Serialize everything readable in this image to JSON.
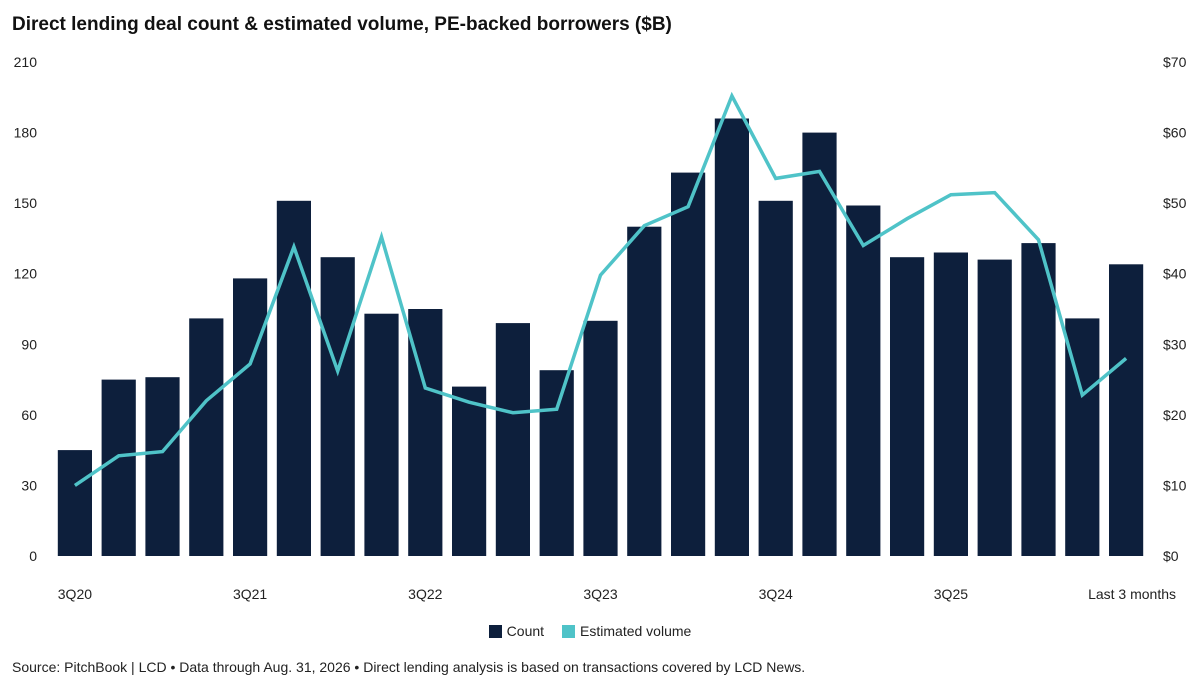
{
  "title": "Direct lending deal count & estimated volume, PE-backed borrowers ($B)",
  "source": "Source: PitchBook | LCD • Data through Aug. 31, 2026 • Direct lending analysis is based on transactions covered by LCD News.",
  "colors": {
    "bar": "#0d1f3c",
    "line": "#4fc3c8",
    "grid": "#e6e6e6"
  },
  "chart_data": {
    "type": "bar",
    "title": "Direct lending deal count & estimated volume, PE-backed borrowers ($B)",
    "x_tick_labels": [
      "3Q20",
      "3Q21",
      "3Q22",
      "3Q23",
      "3Q24",
      "3Q25",
      "Last 3 months"
    ],
    "x_tick_positions": [
      0,
      4,
      8,
      12,
      16,
      20,
      24
    ],
    "y_left": {
      "ticks": [
        "0",
        "30",
        "60",
        "90",
        "120",
        "150",
        "180",
        "210"
      ],
      "range": [
        0,
        210
      ]
    },
    "y_right": {
      "ticks": [
        "$0",
        "$10",
        "$20",
        "$30",
        "$40",
        "$50",
        "$60",
        "$70"
      ],
      "range": [
        0,
        70
      ]
    },
    "legend": {
      "placement": "bottom-center",
      "entries": [
        "Count",
        "Estimated volume"
      ]
    },
    "grid": false,
    "series": [
      {
        "name": "Count",
        "type": "bar",
        "axis": "left",
        "values": [
          45,
          75,
          76,
          101,
          118,
          151,
          127,
          103,
          105,
          72,
          99,
          79,
          100,
          140,
          163,
          186,
          151,
          180,
          149,
          127,
          129,
          126,
          133,
          101,
          124
        ]
      },
      {
        "name": "Estimated volume",
        "type": "line",
        "axis": "right",
        "values": [
          10,
          14.2,
          14.8,
          22,
          27.2,
          43.8,
          26.2,
          45.2,
          23.8,
          21.8,
          20.3,
          20.8,
          39.8,
          46.8,
          49.5,
          65.2,
          53.5,
          54.5,
          44,
          47.8,
          51.2,
          51.5,
          44.8,
          22.8,
          28
        ]
      }
    ]
  }
}
